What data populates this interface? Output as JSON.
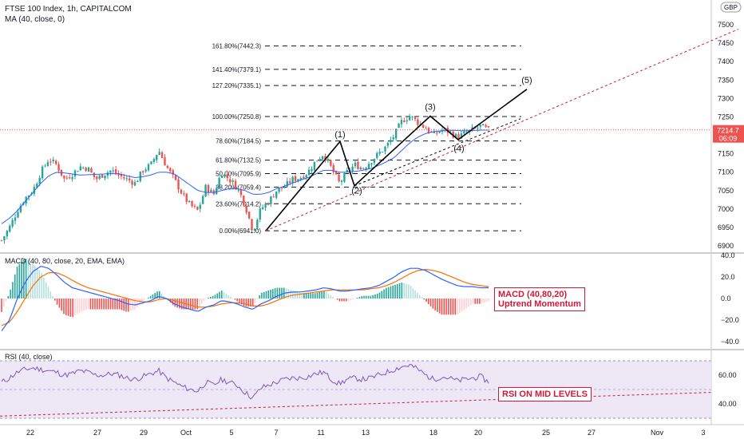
{
  "header": {
    "title": "FTSE 100 Index, 1h, CAPITALCOM",
    "ma_label": "MA (40, close, 0)",
    "currency": "GBP",
    "last_price": "7214.7",
    "countdown": "06:09"
  },
  "macd_panel": {
    "title": "MACD (40, 80, close, 20, EMA, EMA)",
    "box_line1": "MACD (40,80,20)",
    "box_line2": "Uptrend Momentum"
  },
  "rsi_panel": {
    "title": "RSI (40, close)",
    "box": "RSI ON MID LEVELS"
  },
  "colors": {
    "up": "#26a69a",
    "down": "#ef5350",
    "ma": "#2962ff",
    "macd": "#2962ff",
    "signal": "#ff6d00",
    "rsi": "#7e57c2",
    "rsi_band": "#ede7f6",
    "annotation": "#d0193a"
  },
  "chart_data": [
    {
      "type": "candlestick",
      "title": "FTSE 100 Index, 1h, CAPITALCOM",
      "yaxis_ticks": [
        6900,
        6950,
        7000,
        7050,
        7100,
        7150,
        7200,
        7250,
        7300,
        7350,
        7400,
        7450,
        7500
      ],
      "ylim": [
        6880,
        7550
      ],
      "xaxis_ticks": [
        "22",
        "27",
        "29",
        "Oct",
        "5",
        "7",
        "11",
        "13",
        "18",
        "20",
        "25",
        "27",
        "Nov",
        "3"
      ],
      "close_path": [
        6915,
        6950,
        6995,
        7030,
        7050,
        7100,
        7135,
        7120,
        7080,
        7095,
        7115,
        7110,
        7080,
        7095,
        7105,
        7090,
        7080,
        7070,
        7105,
        7120,
        7160,
        7115,
        7080,
        7040,
        7010,
        6995,
        7060,
        7040,
        7100,
        7080,
        7060,
        7010,
        6941,
        7000,
        7020,
        7050,
        7060,
        7080,
        7085,
        7100,
        7130,
        7150,
        7110,
        7070,
        7100,
        7120,
        7110,
        7130,
        7150,
        7170,
        7200,
        7240,
        7252,
        7235,
        7220,
        7200,
        7215,
        7210,
        7195,
        7205,
        7215,
        7225,
        7214
      ],
      "moving_average_path": [
        6960,
        6975,
        6995,
        7020,
        7045,
        7070,
        7090,
        7100,
        7098,
        7095,
        7092,
        7093,
        7094,
        7095,
        7096,
        7095,
        7090,
        7085,
        7088,
        7092,
        7100,
        7100,
        7095,
        7080,
        7065,
        7050,
        7045,
        7045,
        7050,
        7055,
        7055,
        7050,
        7040,
        7040,
        7045,
        7055,
        7062,
        7070,
        7078,
        7085,
        7095,
        7105,
        7105,
        7100,
        7100,
        7102,
        7105,
        7110,
        7118,
        7128,
        7140,
        7160,
        7180,
        7195,
        7205,
        7210,
        7212,
        7214,
        7213,
        7212,
        7213,
        7214,
        7214
      ],
      "fibonacci_levels": [
        {
          "label": "161.80%(7442.3)",
          "value": 7442.3
        },
        {
          "label": "141.40%(7379.1)",
          "value": 7379.1
        },
        {
          "label": "127.20%(7335.1)",
          "value": 7335.1
        },
        {
          "label": "100.00%(7250.8)",
          "value": 7250.8
        },
        {
          "label": "78.60%(7184.5)",
          "value": 7184.5
        },
        {
          "label": "61.80%(7132.5)",
          "value": 7132.5
        },
        {
          "label": "50.00%(7095.9)",
          "value": 7095.9
        },
        {
          "label": "38.20%(7059.4)",
          "value": 7059.4
        },
        {
          "label": "23.60%(7014.2)",
          "value": 7014.2
        },
        {
          "label": "0.00%(6941.0)",
          "value": 6941.0
        }
      ],
      "wave_labels": [
        "(1)",
        "(2)",
        "(3)",
        "(4)",
        "(5)"
      ],
      "current_price": 7214.7
    },
    {
      "type": "line",
      "title": "MACD (40, 80, close, 20, EMA, EMA)",
      "yaxis_ticks": [
        "40.0",
        "20.0",
        "0.0",
        "−20.0",
        "−40.0"
      ],
      "ylim": [
        -45,
        45
      ],
      "series": [
        {
          "name": "MACD",
          "values": [
            -30,
            -20,
            0,
            15,
            25,
            30,
            28,
            22,
            15,
            10,
            8,
            6,
            4,
            2,
            0,
            -2,
            -5,
            -6,
            -4,
            -2,
            2,
            0,
            -5,
            -8,
            -10,
            -12,
            -8,
            -6,
            -2,
            -3,
            -5,
            -8,
            -10,
            -5,
            -2,
            2,
            5,
            6,
            6,
            7,
            8,
            10,
            9,
            7,
            7,
            8,
            9,
            10,
            12,
            16,
            20,
            25,
            28,
            28,
            26,
            22,
            18,
            15,
            12,
            11,
            11,
            10,
            10
          ]
        },
        {
          "name": "Signal",
          "values": [
            -25,
            -22,
            -12,
            0,
            12,
            20,
            24,
            24,
            21,
            17,
            13,
            10,
            8,
            6,
            4,
            2,
            0,
            -2,
            -3,
            -3,
            -1,
            0,
            -2,
            -4,
            -6,
            -8,
            -8,
            -7,
            -5,
            -4,
            -4,
            -5,
            -7,
            -7,
            -5,
            -2,
            1,
            3,
            4,
            5,
            6,
            7,
            8,
            8,
            8,
            8,
            8,
            9,
            10,
            12,
            15,
            19,
            23,
            26,
            27,
            26,
            24,
            21,
            18,
            15,
            13,
            12,
            11
          ]
        }
      ]
    },
    {
      "type": "line",
      "title": "RSI (40, close)",
      "yaxis_ticks": [
        "60.00",
        "40.00"
      ],
      "ylim": [
        30,
        74
      ],
      "series": [
        {
          "name": "RSI",
          "values": [
            55,
            58,
            62,
            64,
            65,
            64,
            63,
            62,
            60,
            61,
            63,
            62,
            60,
            60,
            61,
            60,
            58,
            57,
            59,
            61,
            63,
            58,
            55,
            52,
            50,
            49,
            55,
            53,
            57,
            55,
            53,
            48,
            44,
            51,
            53,
            55,
            57,
            58,
            58,
            59,
            61,
            62,
            57,
            54,
            57,
            58,
            57,
            58,
            60,
            62,
            64,
            66,
            67,
            64,
            60,
            57,
            59,
            58,
            56,
            57,
            58,
            59,
            55
          ]
        }
      ]
    }
  ]
}
